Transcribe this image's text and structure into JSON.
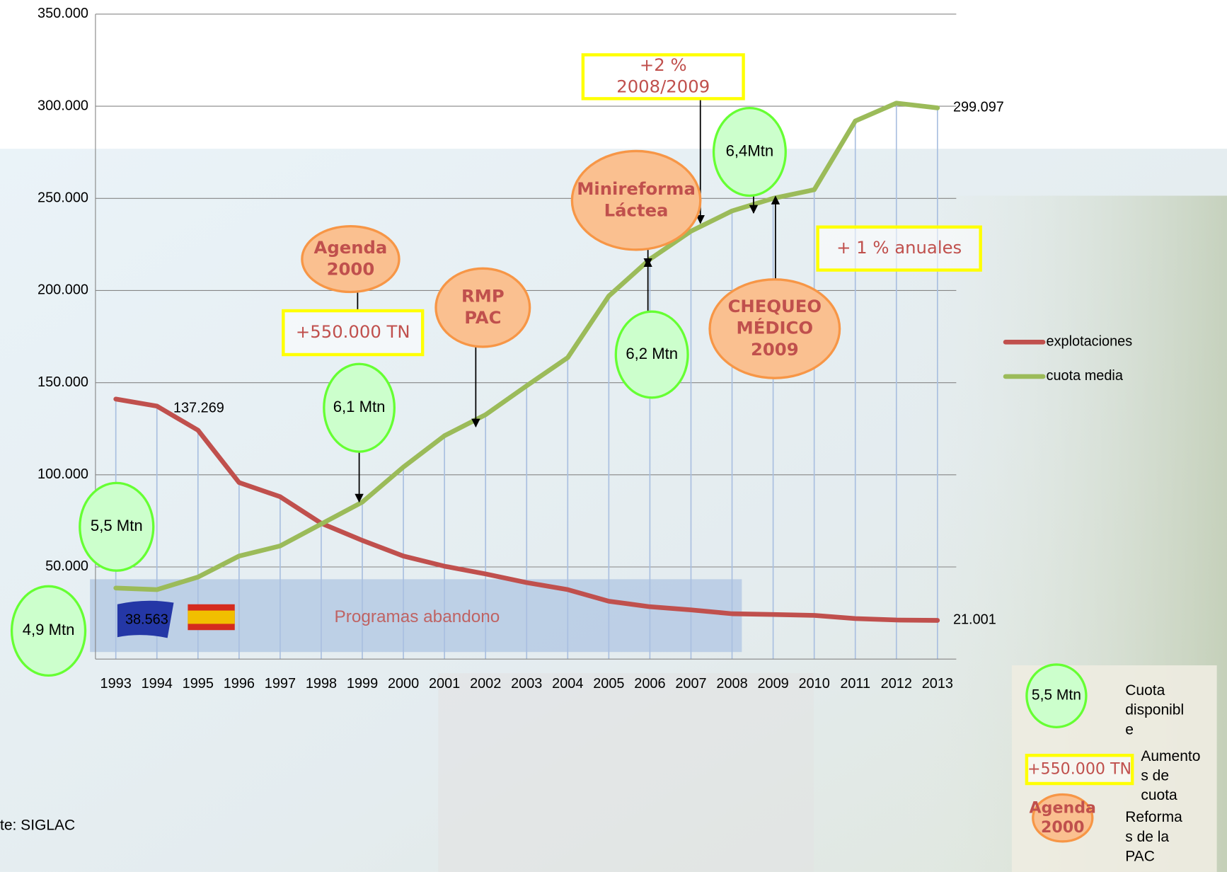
{
  "chart_data": {
    "type": "line",
    "categories": [
      "1993",
      "1994",
      "1995",
      "1996",
      "1997",
      "1998",
      "1999",
      "2000",
      "2001",
      "2002",
      "2003",
      "2004",
      "2005",
      "2006",
      "2007",
      "2008",
      "2009",
      "2010",
      "2011",
      "2012",
      "2013"
    ],
    "series": [
      {
        "name": "explotaciones",
        "color": "#c0504d",
        "values": [
          141100,
          137269,
          124200,
          95800,
          88100,
          73700,
          64400,
          55900,
          50400,
          46200,
          41500,
          37700,
          31400,
          28400,
          26700,
          24600,
          24200,
          23700,
          22000,
          21200,
          21001
        ],
        "value_labels": [
          null,
          "137.269",
          null,
          null,
          null,
          null,
          null,
          null,
          null,
          null,
          null,
          null,
          null,
          null,
          null,
          null,
          null,
          null,
          null,
          null,
          "21.001"
        ]
      },
      {
        "name": "cuota media",
        "color": "#9bbb59",
        "values": [
          38563,
          37700,
          44500,
          55900,
          61400,
          73300,
          85200,
          104200,
          121200,
          132600,
          148300,
          163600,
          197000,
          217000,
          232200,
          243200,
          250000,
          254700,
          292000,
          301700,
          299097
        ],
        "value_labels": [
          "38.563",
          null,
          null,
          null,
          null,
          null,
          null,
          null,
          null,
          null,
          null,
          null,
          null,
          null,
          null,
          null,
          null,
          null,
          null,
          null,
          "299.097"
        ]
      }
    ],
    "ylim": [
      0,
      350000
    ],
    "yticks": [
      {
        "value": 50000,
        "label": "50.000"
      },
      {
        "value": 100000,
        "label": "100.000"
      },
      {
        "value": 150000,
        "label": "150.000"
      },
      {
        "value": 200000,
        "label": "200.000"
      },
      {
        "value": 250000,
        "label": "250.000"
      },
      {
        "value": 300000,
        "label": "300.000"
      },
      {
        "value": 350000,
        "label": "350.000"
      }
    ],
    "grid": true,
    "legend": "right",
    "band_label": "Programas abandono",
    "annotations": [
      [
        "+2 %",
        "2008/2009"
      ],
      [
        "6,4Mtn"
      ],
      [
        "Minireforma",
        "Láctea"
      ],
      [
        "Agenda",
        "2000"
      ],
      [
        "+ 1 % anuales"
      ],
      [
        "RMP",
        "PAC"
      ],
      [
        "+550.000 TN"
      ],
      [
        "CHEQUEO",
        "MÉDICO",
        "2009"
      ],
      [
        "6,2 Mtn"
      ],
      [
        "6,1 Mtn"
      ],
      [
        "5,5 Mtn"
      ],
      [
        "4,9 Mtn"
      ]
    ]
  },
  "key": [
    {
      "sample": [
        "5,5 Mtn"
      ],
      "label": [
        "Cuota",
        "disponibl",
        "e"
      ]
    },
    {
      "sample": [
        "+550.000 TN"
      ],
      "label": [
        "Aumento",
        "s de",
        "cuota"
      ]
    },
    {
      "sample": [
        "Agenda",
        "2000"
      ],
      "label": [
        "Reforma",
        "s de la",
        "PAC"
      ]
    }
  ],
  "source": "te: SIGLAC"
}
